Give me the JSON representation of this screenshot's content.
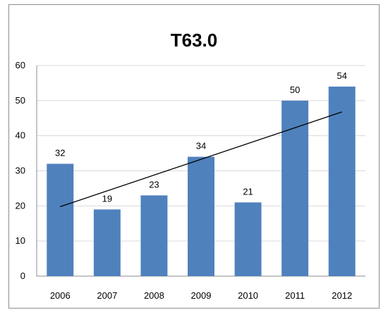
{
  "chart_data": {
    "type": "bar",
    "title": "T63.0",
    "categories": [
      "2006",
      "2007",
      "2008",
      "2009",
      "2010",
      "2011",
      "2012"
    ],
    "values": [
      32,
      19,
      23,
      34,
      21,
      50,
      54
    ],
    "ylim": [
      0,
      60
    ],
    "yticks": [
      "0",
      "10",
      "20",
      "30",
      "40",
      "50",
      "60"
    ],
    "grid": true,
    "legend": "none",
    "trendline": "linear",
    "colors": {
      "bar": "#4f81bd",
      "trend": "#000000",
      "grid": "#d9d9d9"
    }
  }
}
